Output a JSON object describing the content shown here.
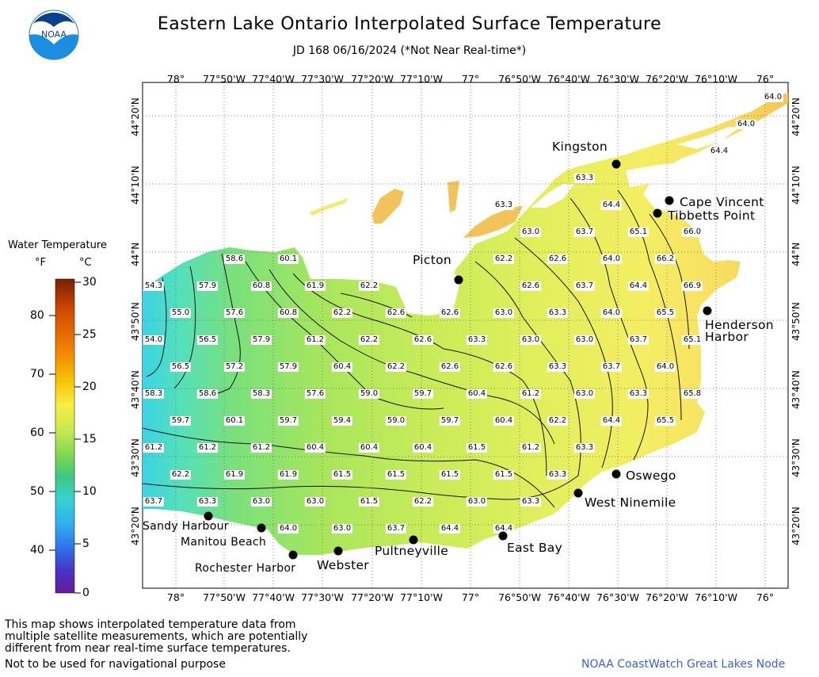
{
  "header": {
    "title": "Eastern Lake Ontario Interpolated Surface Temperature",
    "subtitle": "JD 168 06/16/2024 (*Not Near Real-time*)",
    "logo_text": "NOAA"
  },
  "axes": {
    "lon_ticks": [
      "78°",
      "77°50'W",
      "77°40'W",
      "77°30'W",
      "77°20'W",
      "77°10'W",
      "77°",
      "76°50'W",
      "76°40'W",
      "76°30'W",
      "76°20'W",
      "76°10'W",
      "76°"
    ],
    "lat_ticks": [
      "44°20'N",
      "44°10'N",
      "44°N",
      "43°50'N",
      "43°40'N",
      "43°30'N",
      "43°20'N"
    ]
  },
  "legend": {
    "title": "Water Temperature",
    "unit_f": "°F",
    "unit_c": "°C",
    "f_labels": [
      "80",
      "70",
      "60",
      "50",
      "40"
    ],
    "c_labels": [
      "30",
      "25",
      "20",
      "15",
      "10",
      "5",
      "0"
    ],
    "colors": [
      "#7a1f00",
      "#d24a00",
      "#f07f00",
      "#f5c000",
      "#f8ee40",
      "#c8ea50",
      "#7ed850",
      "#3ec880",
      "#34d4d0",
      "#30b0f0",
      "#2f6fe8",
      "#4a32c8",
      "#6a1a9a"
    ]
  },
  "places": {
    "kingston": "Kingston",
    "cape_vincent": "Cape Vincent",
    "tibbetts_point": "Tibbetts Point",
    "picton": "Picton",
    "henderson_harbor_1": "Henderson",
    "henderson_harbor_2": "Harbor",
    "oswego": "Oswego",
    "west_ninemile": "West Ninemile",
    "east_bay": "East Bay",
    "pultneyville": "Pultneyville",
    "webster": "Webster",
    "rochester_harbor": "Rochester Harbor",
    "manitou_beach": "Manitou Beach",
    "sandy_harbour": "Sandy Harbour"
  },
  "temperatures": [
    "64.0",
    "64.0",
    "64.4",
    "63.3",
    "63.3",
    "64.4",
    "63.0",
    "63.7",
    "65.1",
    "66.0",
    "58.6",
    "60.1",
    "62.2",
    "62.6",
    "64.0",
    "66.2",
    "54.3",
    "57.9",
    "60.8",
    "61.9",
    "62.2",
    "62.6",
    "63.7",
    "64.4",
    "66.9",
    "55.0",
    "57.6",
    "60.8",
    "62.2",
    "62.6",
    "62.6",
    "63.0",
    "63.3",
    "64.0",
    "65.5",
    "54.0",
    "56.5",
    "57.9",
    "61.2",
    "62.2",
    "62.6",
    "63.3",
    "63.0",
    "63.0",
    "63.7",
    "65.1",
    "56.5",
    "57.2",
    "57.9",
    "60.4",
    "62.2",
    "62.6",
    "62.6",
    "63.3",
    "63.7",
    "64.0",
    "58.3",
    "58.6",
    "58.3",
    "57.6",
    "59.0",
    "59.7",
    "60.4",
    "61.2",
    "63.0",
    "63.3",
    "65.8",
    "59.7",
    "60.1",
    "59.7",
    "59.4",
    "59.0",
    "59.7",
    "60.4",
    "62.2",
    "64.4",
    "65.5",
    "61.2",
    "61.2",
    "61.2",
    "60.4",
    "60.4",
    "60.4",
    "61.5",
    "61.2",
    "63.3",
    "62.2",
    "61.9",
    "61.9",
    "61.5",
    "61.5",
    "61.5",
    "61.5",
    "63.3",
    "63.7",
    "63.3",
    "63.0",
    "63.0",
    "61.5",
    "62.2",
    "63.0",
    "63.3",
    "64.0",
    "63.0",
    "63.7",
    "64.4",
    "64.4"
  ],
  "footer": {
    "note_line1": "This map shows interpolated temperature data from",
    "note_line2": "multiple satellite measurements, which are potentially",
    "note_line3": "different from near real-time surface temperatures.",
    "warning": "Not to be used for navigational purpose",
    "credit": "NOAA CoastWatch Great Lakes Node"
  }
}
